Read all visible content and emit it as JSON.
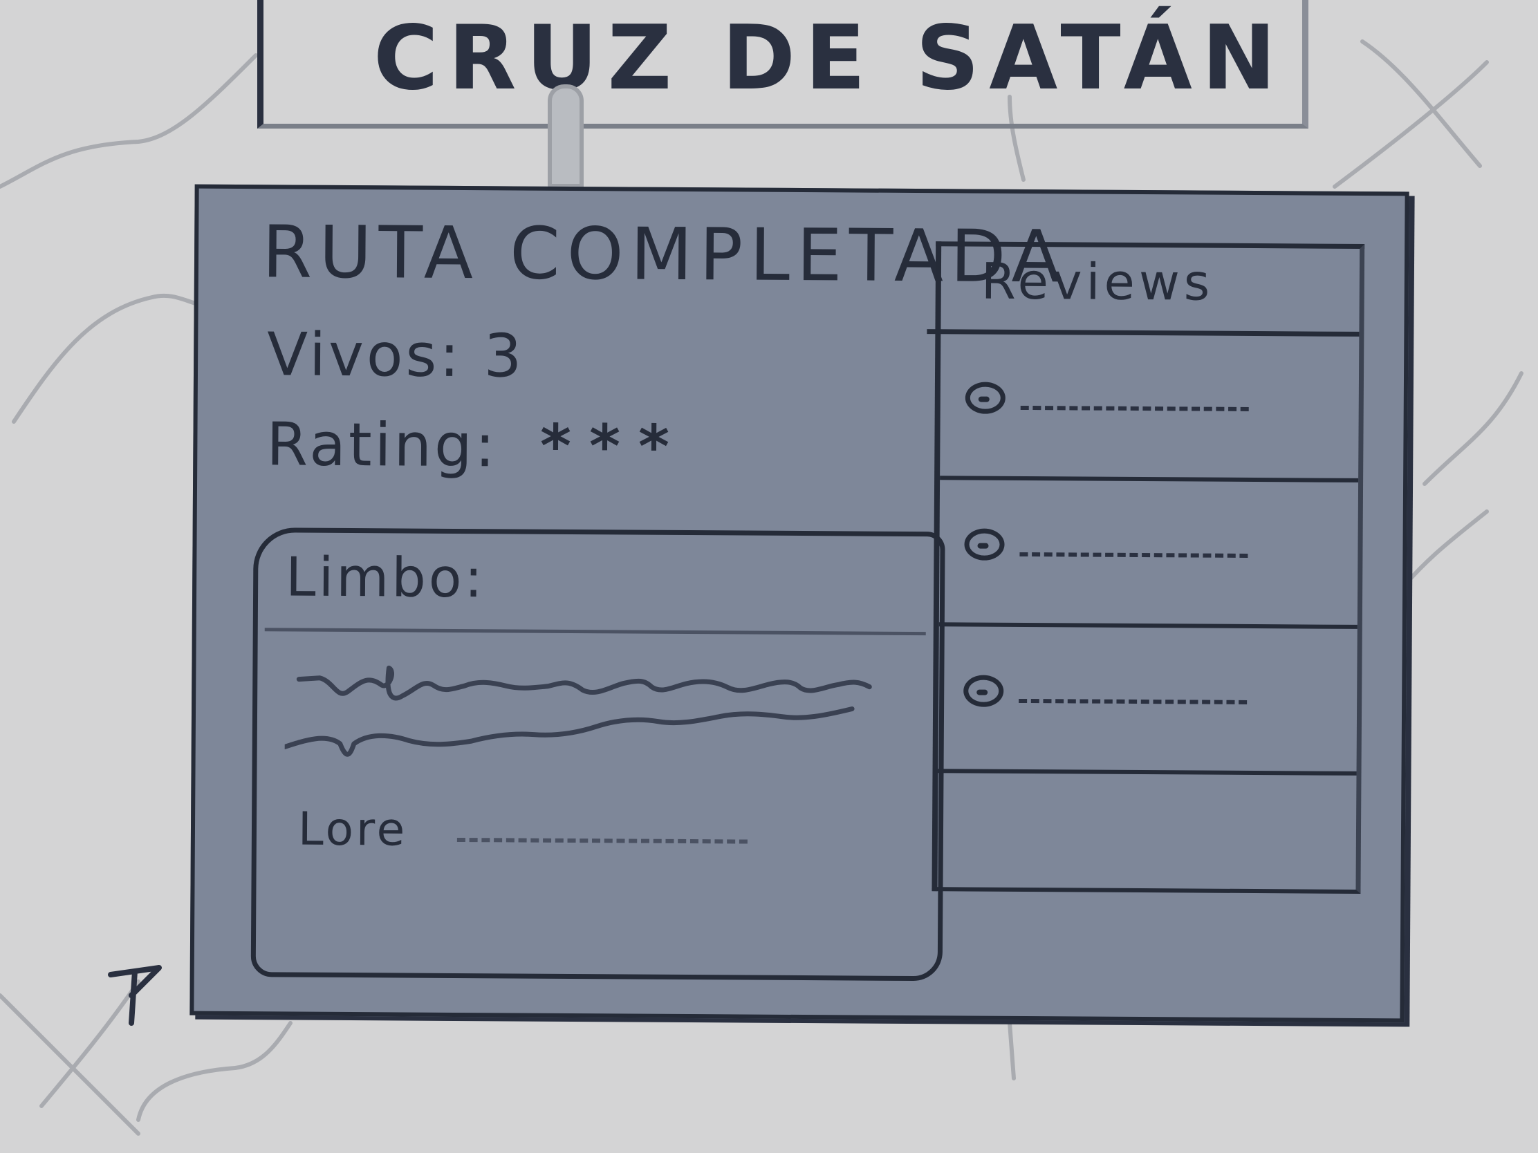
{
  "banner": {
    "title": "CRUZ DE SATÁN"
  },
  "panel": {
    "title": "RUTA COMPLETADA",
    "stats": {
      "vivos_label": "Vivos:",
      "vivos_value": "3",
      "rating_label": "Rating:",
      "rating_stars": "***",
      "rating_value": 3
    },
    "limbo": {
      "title": "Limbo:",
      "lore_label": "Lore"
    },
    "reviews": {
      "title": "Reviews",
      "items": [
        {
          "icon": "avatar-icon"
        },
        {
          "icon": "avatar-icon"
        },
        {
          "icon": "avatar-icon"
        }
      ]
    }
  },
  "colors": {
    "background": "#d4d4d5",
    "panel": "#7e8799",
    "ink": "#262c3a"
  }
}
